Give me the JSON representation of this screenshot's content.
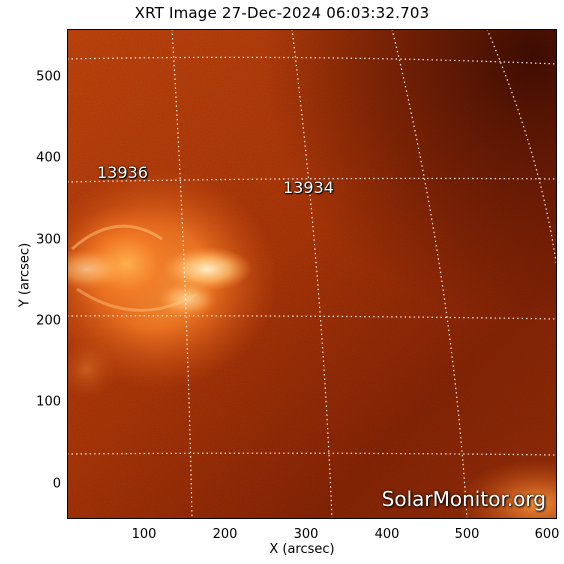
{
  "title": "XRT Image 27-Dec-2024 06:03:32.703",
  "xlabel": "X (arcsec)",
  "ylabel": "Y (arcsec)",
  "x_ticks": [
    "100",
    "200",
    "300",
    "400",
    "500",
    "600"
  ],
  "y_ticks": [
    "500",
    "400",
    "300",
    "200",
    "100",
    "0"
  ],
  "regions": [
    "13936",
    "13934"
  ],
  "watermark": "SolarMonitor.org",
  "colors": {
    "background_mid": "#b83a0a",
    "background_dark": "#5a1404",
    "active_region_bright": "#ffb050",
    "grid": "#ffffff"
  }
}
